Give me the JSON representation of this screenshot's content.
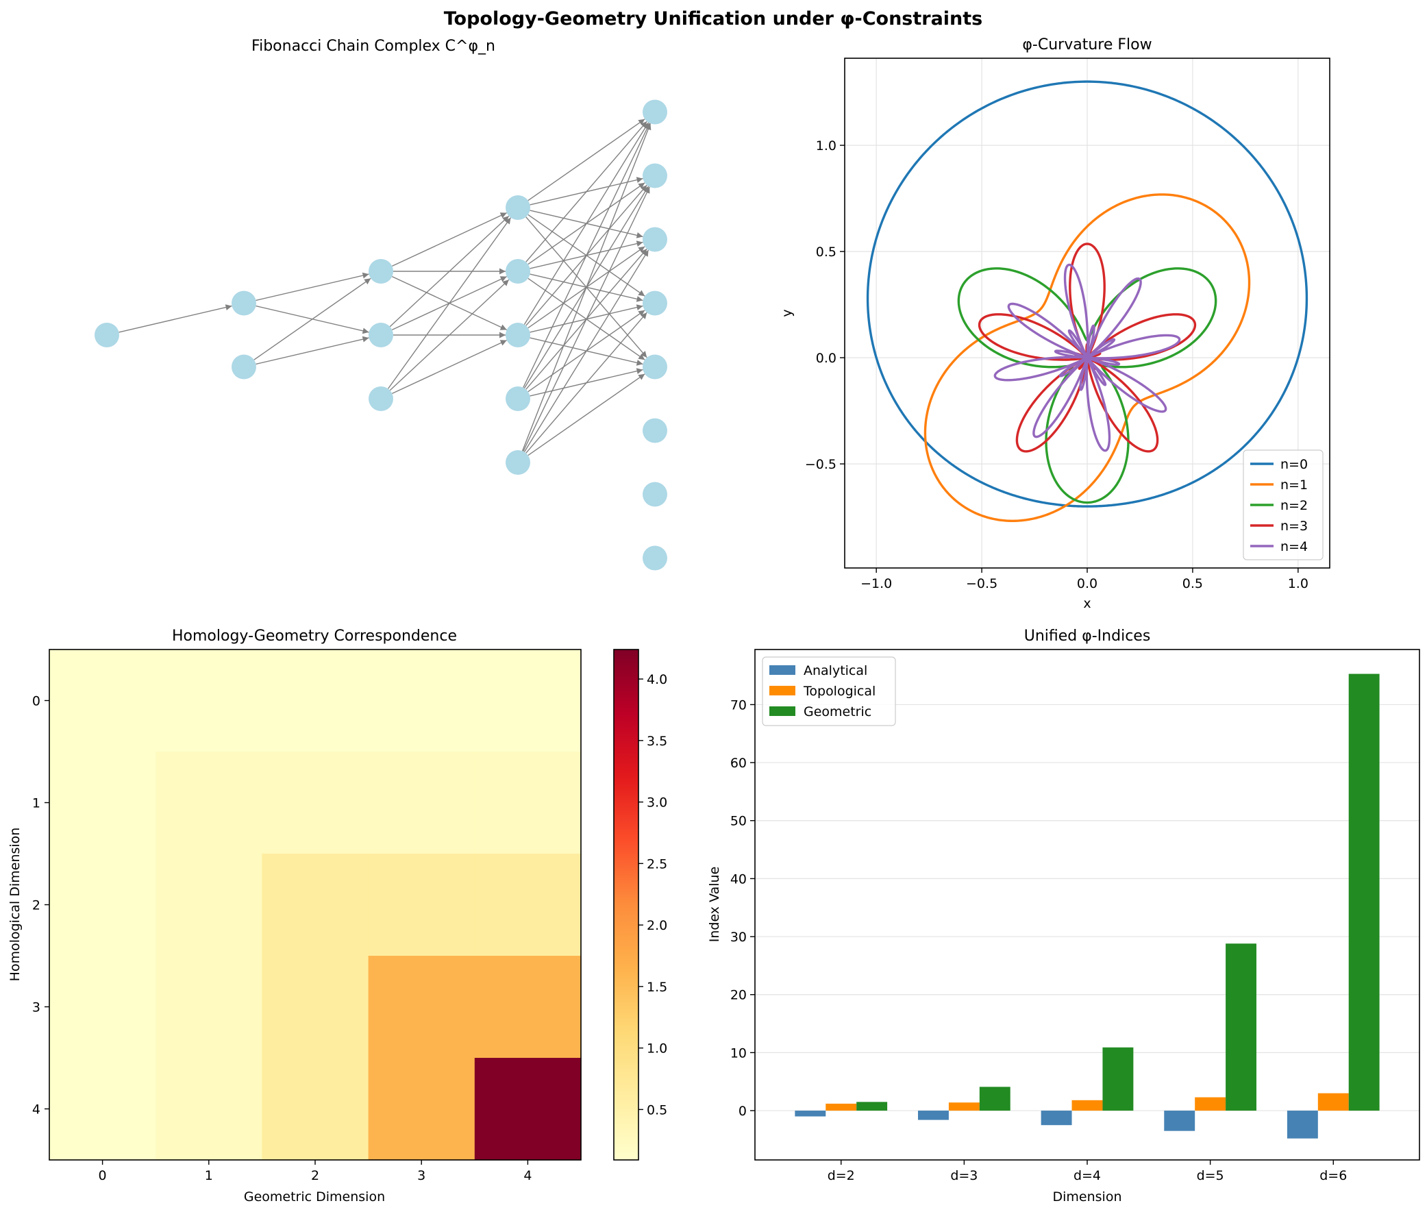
{
  "figure": {
    "suptitle": "Topology-Geometry Unification under φ-Constraints"
  },
  "panels": {
    "chain": {
      "title": "Fibonacci Chain Complex C^φ_n"
    },
    "flow": {
      "title": "φ-Curvature Flow",
      "xlabel": "x",
      "ylabel": "y"
    },
    "heatmap": {
      "title": "Homology-Geometry Correspondence",
      "xlabel": "Geometric Dimension",
      "ylabel": "Homological Dimension"
    },
    "indices": {
      "title": "Unified φ-Indices",
      "xlabel": "Dimension",
      "ylabel": "Index Value"
    }
  },
  "colors": {
    "node": "#add8e6",
    "edge": "#808080",
    "analytical": "#4682b4",
    "topological": "#ff8c00",
    "geometric": "#228b22",
    "n0": "#1f77b4",
    "n1": "#ff7f0e",
    "n2": "#2ca02c",
    "n3": "#d62728",
    "n4": "#9467bd"
  },
  "chart_data": [
    {
      "type": "network",
      "title": "Fibonacci Chain Complex C^φ_n",
      "levels": [
        1,
        2,
        3,
        5,
        8
      ],
      "edges": [
        [
          [
            0,
            0
          ],
          [
            1,
            1
          ]
        ],
        [
          [
            1,
            0
          ],
          [
            2,
            1
          ]
        ],
        [
          [
            1,
            0
          ],
          [
            2,
            2
          ]
        ],
        [
          [
            1,
            1
          ],
          [
            2,
            1
          ]
        ],
        [
          [
            1,
            1
          ],
          [
            2,
            2
          ]
        ],
        [
          [
            2,
            0
          ],
          [
            3,
            2
          ]
        ],
        [
          [
            2,
            0
          ],
          [
            3,
            3
          ]
        ],
        [
          [
            2,
            0
          ],
          [
            3,
            4
          ]
        ],
        [
          [
            2,
            1
          ],
          [
            3,
            2
          ]
        ],
        [
          [
            2,
            1
          ],
          [
            3,
            3
          ]
        ],
        [
          [
            2,
            1
          ],
          [
            3,
            4
          ]
        ],
        [
          [
            2,
            2
          ],
          [
            3,
            2
          ]
        ],
        [
          [
            2,
            2
          ],
          [
            3,
            3
          ]
        ],
        [
          [
            2,
            2
          ],
          [
            3,
            4
          ]
        ],
        [
          [
            3,
            0
          ],
          [
            4,
            3
          ]
        ],
        [
          [
            3,
            0
          ],
          [
            4,
            4
          ]
        ],
        [
          [
            3,
            0
          ],
          [
            4,
            5
          ]
        ],
        [
          [
            3,
            0
          ],
          [
            4,
            6
          ]
        ],
        [
          [
            3,
            0
          ],
          [
            4,
            7
          ]
        ],
        [
          [
            3,
            1
          ],
          [
            4,
            3
          ]
        ],
        [
          [
            3,
            1
          ],
          [
            4,
            4
          ]
        ],
        [
          [
            3,
            1
          ],
          [
            4,
            5
          ]
        ],
        [
          [
            3,
            1
          ],
          [
            4,
            6
          ]
        ],
        [
          [
            3,
            1
          ],
          [
            4,
            7
          ]
        ],
        [
          [
            3,
            2
          ],
          [
            4,
            3
          ]
        ],
        [
          [
            3,
            2
          ],
          [
            4,
            4
          ]
        ],
        [
          [
            3,
            2
          ],
          [
            4,
            5
          ]
        ],
        [
          [
            3,
            2
          ],
          [
            4,
            6
          ]
        ],
        [
          [
            3,
            2
          ],
          [
            4,
            7
          ]
        ],
        [
          [
            3,
            3
          ],
          [
            4,
            3
          ]
        ],
        [
          [
            3,
            3
          ],
          [
            4,
            4
          ]
        ],
        [
          [
            3,
            3
          ],
          [
            4,
            5
          ]
        ],
        [
          [
            3,
            3
          ],
          [
            4,
            6
          ]
        ],
        [
          [
            3,
            3
          ],
          [
            4,
            7
          ]
        ],
        [
          [
            3,
            4
          ],
          [
            4,
            3
          ]
        ],
        [
          [
            3,
            4
          ],
          [
            4,
            4
          ]
        ],
        [
          [
            3,
            4
          ],
          [
            4,
            5
          ]
        ],
        [
          [
            3,
            4
          ],
          [
            4,
            6
          ]
        ],
        [
          [
            3,
            4
          ],
          [
            4,
            7
          ]
        ]
      ]
    },
    {
      "type": "line",
      "title": "φ-Curvature Flow",
      "xlabel": "x",
      "ylabel": "y",
      "xlim": [
        -1.15,
        1.15
      ],
      "ylim": [
        -0.99,
        1.41
      ],
      "xticks": [
        -1.0,
        -0.5,
        0.0,
        0.5,
        1.0
      ],
      "xtick_labels": [
        "−1.0",
        "−0.5",
        "0.0",
        "0.5",
        "1.0"
      ],
      "yticks": [
        -0.5,
        0.0,
        0.5,
        1.0
      ],
      "ytick_labels": [
        "−0.5",
        "0.0",
        "0.5",
        "1.0"
      ],
      "grid": true,
      "legend_position": "lower-right",
      "series": [
        {
          "name": "n=0",
          "base": 1.0,
          "amplitude": 0.3,
          "frequency": 1
        },
        {
          "name": "n=1",
          "base": 0.618,
          "amplitude": 0.3,
          "frequency": 2
        },
        {
          "name": "n=2",
          "base": 0.382,
          "amplitude": 0.3,
          "frequency": 3
        },
        {
          "name": "n=3",
          "base": 0.236,
          "amplitude": 0.3,
          "frequency": 5
        },
        {
          "name": "n=4",
          "base": 0.146,
          "amplitude": 0.3,
          "frequency": 8
        }
      ]
    },
    {
      "type": "heatmap",
      "title": "Homology-Geometry Correspondence",
      "xlabel": "Geometric Dimension",
      "ylabel": "Homological Dimension",
      "x_ticks": [
        "0",
        "1",
        "2",
        "3",
        "4"
      ],
      "y_ticks": [
        "0",
        "1",
        "2",
        "3",
        "4"
      ],
      "matrix": [
        [
          0.09,
          0.09,
          0.09,
          0.09,
          0.09
        ],
        [
          0.09,
          0.24,
          0.24,
          0.24,
          0.24
        ],
        [
          0.09,
          0.24,
          0.62,
          0.62,
          0.62
        ],
        [
          0.09,
          0.24,
          0.62,
          1.62,
          1.62
        ],
        [
          0.09,
          0.24,
          0.62,
          1.62,
          4.24
        ]
      ],
      "colorbar": {
        "range": [
          0.09,
          4.24
        ],
        "ticks": [
          0.5,
          1.0,
          1.5,
          2.0,
          2.5,
          3.0,
          3.5,
          4.0
        ],
        "tick_labels": [
          "0.5",
          "1.0",
          "1.5",
          "2.0",
          "2.5",
          "3.0",
          "3.5",
          "4.0"
        ],
        "colormap": "YlOrRd"
      }
    },
    {
      "type": "bar",
      "title": "Unified φ-Indices",
      "xlabel": "Dimension",
      "ylabel": "Index Value",
      "categories": [
        "d=2",
        "d=3",
        "d=4",
        "d=5",
        "d=6"
      ],
      "ylim": [
        -8.5,
        79.5
      ],
      "yticks": [
        0,
        10,
        20,
        30,
        40,
        50,
        60,
        70
      ],
      "ytick_labels": [
        "0",
        "10",
        "20",
        "30",
        "40",
        "50",
        "60",
        "70"
      ],
      "grid": true,
      "legend_position": "upper-left",
      "series": [
        {
          "name": "Analytical",
          "values": [
            -1.0,
            -1.6,
            -2.5,
            -3.5,
            -4.8
          ]
        },
        {
          "name": "Topological",
          "values": [
            1.2,
            1.4,
            1.8,
            2.3,
            3.0
          ]
        },
        {
          "name": "Geometric",
          "values": [
            1.5,
            4.1,
            10.9,
            28.8,
            75.3
          ]
        }
      ]
    }
  ]
}
